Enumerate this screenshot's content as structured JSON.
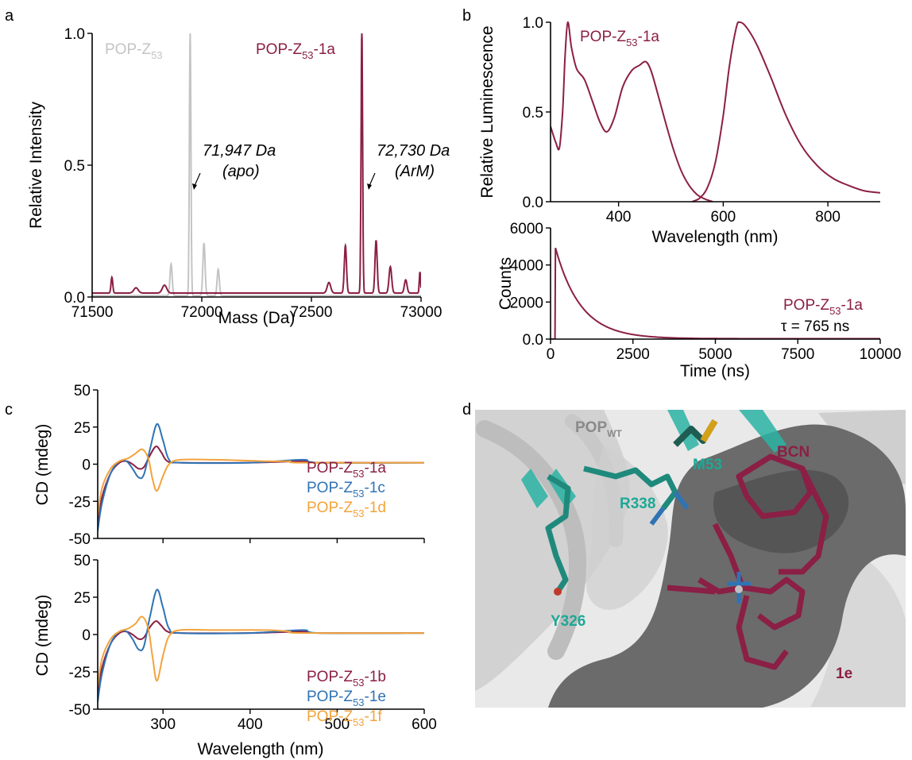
{
  "panels": {
    "a": "a",
    "b": "b",
    "c": "c",
    "d": "d"
  },
  "colors": {
    "maroon": "#8b1f45",
    "grey": "#c4c4c4",
    "blue": "#2f73b4",
    "orange": "#f3a33c",
    "teal": "#2ab3a3",
    "surface": "#6b6b6b"
  },
  "chart_data": [
    {
      "id": "a",
      "type": "line",
      "xlabel": "Mass (Da)",
      "ylabel": "Relative Intensity",
      "xlim": [
        71500,
        73000
      ],
      "ylim": [
        0,
        1.0
      ],
      "xticks": [
        71500,
        72000,
        72500,
        73000
      ],
      "xtick_labels": [
        "71500",
        "72000",
        "72500",
        "73000"
      ],
      "yticks": [
        0,
        0.5,
        1.0
      ],
      "ytick_labels": [
        "0.0",
        "0.5",
        "1.0"
      ],
      "series": [
        {
          "name_main": "POP-Z",
          "name_sub": "53",
          "name_tail": "",
          "color": "#c4c4c4",
          "baseline": 0.005,
          "peaks": [
            [
              71860,
              0.12,
              5
            ],
            [
              71947,
              1.0,
              3.5
            ],
            [
              72010,
              0.2,
              5
            ],
            [
              72075,
              0.1,
              5
            ]
          ]
        },
        {
          "name_main": "POP-Z",
          "name_sub": "53",
          "name_tail": "-1a",
          "color": "#8b1f45",
          "baseline": 0.015,
          "peaks": [
            [
              71590,
              0.06,
              4
            ],
            [
              71700,
              0.02,
              10
            ],
            [
              71830,
              0.03,
              10
            ],
            [
              72580,
              0.04,
              8
            ],
            [
              72655,
              0.18,
              5
            ],
            [
              72730,
              1.0,
              3.5
            ],
            [
              72795,
              0.2,
              5
            ],
            [
              72860,
              0.1,
              6
            ],
            [
              72930,
              0.05,
              6
            ],
            [
              72995,
              0.08,
              3
            ]
          ]
        }
      ],
      "annotations": [
        {
          "line1": "71,947 Da",
          "line2": "(apo)"
        },
        {
          "line1": "72,730 Da",
          "line2": "(ArM)"
        }
      ]
    },
    {
      "id": "b-top",
      "type": "line",
      "xlabel": "Wavelength (nm)",
      "ylabel": "Relative Luminescence",
      "xlim": [
        270,
        900
      ],
      "ylim": [
        0,
        1.0
      ],
      "xticks": [
        400,
        600,
        800
      ],
      "xtick_labels": [
        "400",
        "600",
        "800"
      ],
      "yticks": [
        0,
        0.5,
        1.0
      ],
      "ytick_labels": [
        "0.0",
        "0.5",
        "1.0"
      ],
      "series": [
        {
          "name": "excitation",
          "color": "#8b1f45",
          "points": [
            [
              270,
              0.42
            ],
            [
              280,
              0.33
            ],
            [
              287,
              0.3
            ],
            [
              293,
              0.5
            ],
            [
              298,
              0.82
            ],
            [
              303,
              1.0
            ],
            [
              310,
              0.86
            ],
            [
              320,
              0.74
            ],
            [
              335,
              0.68
            ],
            [
              350,
              0.56
            ],
            [
              365,
              0.44
            ],
            [
              378,
              0.39
            ],
            [
              392,
              0.47
            ],
            [
              408,
              0.64
            ],
            [
              425,
              0.73
            ],
            [
              440,
              0.76
            ],
            [
              452,
              0.78
            ],
            [
              462,
              0.73
            ],
            [
              475,
              0.6
            ],
            [
              490,
              0.44
            ],
            [
              505,
              0.29
            ],
            [
              520,
              0.17
            ],
            [
              535,
              0.09
            ],
            [
              550,
              0.04
            ],
            [
              565,
              0.015
            ],
            [
              580,
              0.0
            ]
          ]
        },
        {
          "name": "emission",
          "color": "#8b1f45",
          "points": [
            [
              540,
              0.0
            ],
            [
              555,
              0.02
            ],
            [
              570,
              0.08
            ],
            [
              585,
              0.22
            ],
            [
              600,
              0.48
            ],
            [
              612,
              0.76
            ],
            [
              625,
              0.97
            ],
            [
              632,
              1.0
            ],
            [
              645,
              0.97
            ],
            [
              665,
              0.87
            ],
            [
              690,
              0.7
            ],
            [
              720,
              0.48
            ],
            [
              750,
              0.31
            ],
            [
              780,
              0.2
            ],
            [
              810,
              0.13
            ],
            [
              840,
              0.09
            ],
            [
              870,
              0.06
            ],
            [
              900,
              0.05
            ]
          ]
        }
      ],
      "label_main": "POP-Z",
      "label_sub": "53",
      "label_tail": "-1a"
    },
    {
      "id": "b-bottom",
      "type": "line",
      "xlabel": "Time (ns)",
      "ylabel": "Counts",
      "xlim": [
        0,
        10000
      ],
      "ylim": [
        0,
        6000
      ],
      "xticks": [
        0,
        2500,
        5000,
        7500,
        10000
      ],
      "xtick_labels": [
        "0",
        "2500",
        "5000",
        "7500",
        "10000"
      ],
      "yticks": [
        0,
        2000,
        4000,
        6000
      ],
      "ytick_labels": [
        "0.0",
        "2000",
        "4000",
        "6000"
      ],
      "series": [
        {
          "name_main": "POP-Z",
          "name_sub": "53",
          "name_tail": "-1a",
          "color": "#8b1f45",
          "t0": 150,
          "amplitude": 4900,
          "lifetime": 765
        }
      ],
      "tau_label": "τ = 765 ns"
    },
    {
      "id": "c-top",
      "type": "line",
      "xlabel": "",
      "ylabel": "CD (mdeg)",
      "xlim": [
        225,
        600
      ],
      "ylim": [
        -50,
        50
      ],
      "xticks": [
        300,
        400,
        500,
        600
      ],
      "yticks": [
        -50,
        -25,
        0,
        25,
        50
      ],
      "ytick_labels": [
        "-50",
        "-25",
        "0",
        "25",
        "50"
      ],
      "series": [
        {
          "name_main": "POP-Z",
          "name_sub": "53",
          "name_tail": "-1a",
          "color": "#8b1f45",
          "points": [
            [
              225,
              -40
            ],
            [
              230,
              -22
            ],
            [
              240,
              -6
            ],
            [
              250,
              1
            ],
            [
              258,
              2
            ],
            [
              265,
              0
            ],
            [
              272,
              -3
            ],
            [
              278,
              -2
            ],
            [
              285,
              6
            ],
            [
              292,
              12
            ],
            [
              298,
              8
            ],
            [
              305,
              2
            ],
            [
              320,
              1
            ],
            [
              400,
              1
            ],
            [
              460,
              2
            ],
            [
              480,
              1
            ],
            [
              600,
              1
            ]
          ]
        },
        {
          "name_main": "POP-Z",
          "name_sub": "53",
          "name_tail": "-1c",
          "color": "#2f73b4",
          "points": [
            [
              225,
              -45
            ],
            [
              230,
              -26
            ],
            [
              240,
              -6
            ],
            [
              250,
              2
            ],
            [
              258,
              2
            ],
            [
              265,
              -3
            ],
            [
              272,
              -9
            ],
            [
              278,
              -7
            ],
            [
              285,
              10
            ],
            [
              293,
              27
            ],
            [
              300,
              16
            ],
            [
              307,
              3
            ],
            [
              320,
              1
            ],
            [
              400,
              1
            ],
            [
              460,
              3
            ],
            [
              480,
              1
            ],
            [
              600,
              1
            ]
          ]
        },
        {
          "name_main": "POP-Z",
          "name_sub": "53",
          "name_tail": "-1d",
          "color": "#f3a33c",
          "points": [
            [
              225,
              -35
            ],
            [
              230,
              -16
            ],
            [
              240,
              -3
            ],
            [
              250,
              2
            ],
            [
              260,
              4
            ],
            [
              268,
              7
            ],
            [
              276,
              10
            ],
            [
              283,
              4
            ],
            [
              288,
              -10
            ],
            [
              293,
              -18
            ],
            [
              300,
              -8
            ],
            [
              307,
              0
            ],
            [
              320,
              3
            ],
            [
              360,
              3
            ],
            [
              420,
              2
            ],
            [
              445,
              2
            ],
            [
              460,
              1
            ],
            [
              600,
              1
            ]
          ]
        }
      ]
    },
    {
      "id": "c-bottom",
      "type": "line",
      "xlabel": "Wavelength (nm)",
      "ylabel": "CD (mdeg)",
      "xlim": [
        225,
        600
      ],
      "ylim": [
        -50,
        50
      ],
      "xticks": [
        300,
        400,
        500,
        600
      ],
      "xtick_labels": [
        "300",
        "400",
        "500",
        "600"
      ],
      "yticks": [
        -50,
        -25,
        0,
        25,
        50
      ],
      "ytick_labels": [
        "-50",
        "-25",
        "0",
        "25",
        "50"
      ],
      "series": [
        {
          "name_main": "POP-Z",
          "name_sub": "53",
          "name_tail": "-1b",
          "color": "#8b1f45",
          "points": [
            [
              225,
              -40
            ],
            [
              230,
              -22
            ],
            [
              240,
              -6
            ],
            [
              250,
              1
            ],
            [
              258,
              2
            ],
            [
              265,
              0
            ],
            [
              272,
              -3
            ],
            [
              278,
              -2
            ],
            [
              285,
              5
            ],
            [
              292,
              9
            ],
            [
              298,
              6
            ],
            [
              305,
              2
            ],
            [
              320,
              1
            ],
            [
              400,
              1
            ],
            [
              460,
              2
            ],
            [
              480,
              1
            ],
            [
              600,
              1
            ]
          ]
        },
        {
          "name_main": "POP-Z",
          "name_sub": "53",
          "name_tail": "-1e",
          "color": "#2f73b4",
          "points": [
            [
              225,
              -45
            ],
            [
              230,
              -26
            ],
            [
              240,
              -6
            ],
            [
              250,
              2
            ],
            [
              258,
              2
            ],
            [
              265,
              -3
            ],
            [
              272,
              -10
            ],
            [
              278,
              -8
            ],
            [
              285,
              12
            ],
            [
              293,
              30
            ],
            [
              300,
              18
            ],
            [
              307,
              4
            ],
            [
              320,
              1
            ],
            [
              400,
              1
            ],
            [
              460,
              3
            ],
            [
              480,
              1
            ],
            [
              600,
              1
            ]
          ]
        },
        {
          "name_main": "POP-Z",
          "name_sub": "53",
          "name_tail": "-1f",
          "color": "#f3a33c",
          "points": [
            [
              225,
              -35
            ],
            [
              230,
              -16
            ],
            [
              240,
              -3
            ],
            [
              250,
              2
            ],
            [
              260,
              4
            ],
            [
              268,
              7
            ],
            [
              276,
              12
            ],
            [
              283,
              4
            ],
            [
              288,
              -15
            ],
            [
              293,
              -31
            ],
            [
              300,
              -14
            ],
            [
              307,
              -1
            ],
            [
              320,
              3
            ],
            [
              360,
              3
            ],
            [
              420,
              3
            ],
            [
              445,
              2
            ],
            [
              460,
              1
            ],
            [
              600,
              1
            ]
          ]
        }
      ]
    }
  ],
  "structure": {
    "title_main": "POP",
    "title_sub": "WT",
    "residues": [
      "M53",
      "R338",
      "Y326"
    ],
    "cofactor_labels": [
      "BCN",
      "1e"
    ]
  }
}
